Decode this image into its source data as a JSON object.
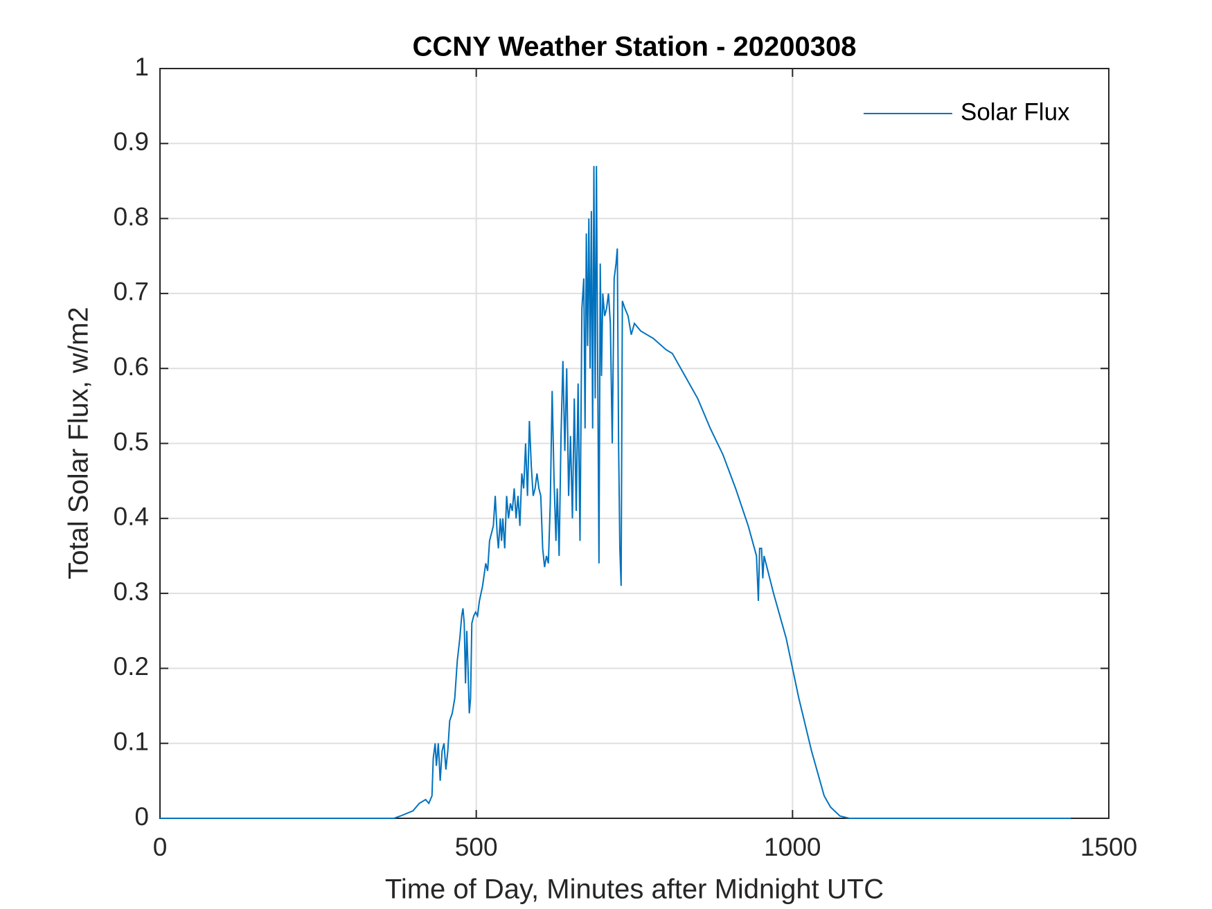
{
  "chart_data": {
    "type": "line",
    "title": "CCNY Weather Station - 20200308",
    "x_label": "Time of Day, Minutes after Midnight UTC",
    "y_label": "Total Solar Flux, w/m2",
    "x": [
      0,
      370,
      380,
      400,
      410,
      420,
      425,
      430,
      432,
      435,
      437,
      440,
      443,
      446,
      449,
      452,
      455,
      458,
      462,
      466,
      470,
      474,
      477,
      479,
      481,
      483,
      485,
      487,
      489,
      491,
      493,
      496,
      499,
      502,
      505,
      510,
      515,
      518,
      521,
      524,
      527,
      530,
      533,
      535,
      538,
      540,
      542,
      545,
      548,
      551,
      554,
      557,
      560,
      563,
      566,
      569,
      572,
      575,
      578,
      581,
      584,
      587,
      590,
      593,
      596,
      599,
      602,
      605,
      608,
      611,
      614,
      617,
      620,
      623,
      626,
      628,
      631,
      634,
      637,
      640,
      643,
      646,
      649,
      652,
      655,
      658,
      661,
      664,
      667,
      670,
      672,
      674,
      676,
      678,
      680,
      682,
      684,
      686,
      688,
      690,
      692,
      694,
      696,
      698,
      700,
      703,
      706,
      709,
      712,
      715,
      718,
      721,
      723,
      725,
      727,
      729,
      731,
      735,
      740,
      745,
      750,
      760,
      780,
      800,
      810,
      830,
      850,
      870,
      890,
      910,
      930,
      943,
      946,
      948,
      951,
      953,
      955,
      970,
      990,
      1010,
      1030,
      1050,
      1060,
      1075,
      1090,
      1440
    ],
    "series": [
      {
        "name": "Solar Flux",
        "color": "#0072bd",
        "values": [
          0,
          0,
          0.003,
          0.01,
          0.02,
          0.025,
          0.02,
          0.03,
          0.08,
          0.1,
          0.07,
          0.1,
          0.05,
          0.09,
          0.1,
          0.065,
          0.09,
          0.13,
          0.14,
          0.16,
          0.21,
          0.24,
          0.27,
          0.28,
          0.26,
          0.18,
          0.25,
          0.2,
          0.14,
          0.16,
          0.26,
          0.27,
          0.275,
          0.27,
          0.29,
          0.31,
          0.34,
          0.33,
          0.37,
          0.38,
          0.39,
          0.43,
          0.38,
          0.36,
          0.4,
          0.37,
          0.4,
          0.36,
          0.43,
          0.4,
          0.42,
          0.41,
          0.44,
          0.4,
          0.43,
          0.39,
          0.46,
          0.44,
          0.5,
          0.43,
          0.53,
          0.47,
          0.43,
          0.44,
          0.46,
          0.44,
          0.43,
          0.36,
          0.335,
          0.35,
          0.34,
          0.42,
          0.57,
          0.45,
          0.37,
          0.44,
          0.35,
          0.51,
          0.61,
          0.49,
          0.6,
          0.43,
          0.51,
          0.4,
          0.56,
          0.41,
          0.58,
          0.37,
          0.68,
          0.72,
          0.52,
          0.78,
          0.63,
          0.8,
          0.6,
          0.81,
          0.52,
          0.87,
          0.56,
          0.87,
          0.6,
          0.34,
          0.74,
          0.59,
          0.7,
          0.67,
          0.68,
          0.7,
          0.66,
          0.5,
          0.72,
          0.74,
          0.76,
          0.5,
          0.36,
          0.31,
          0.69,
          0.68,
          0.67,
          0.645,
          0.66,
          0.65,
          0.64,
          0.625,
          0.62,
          0.59,
          0.56,
          0.52,
          0.485,
          0.44,
          0.39,
          0.35,
          0.29,
          0.36,
          0.36,
          0.32,
          0.35,
          0.3,
          0.24,
          0.16,
          0.09,
          0.03,
          0.015,
          0.003,
          0,
          0
        ]
      }
    ],
    "xlim": [
      0,
      1500
    ],
    "xticks": [
      0,
      500,
      1000,
      1500
    ],
    "ylim": [
      0,
      1
    ],
    "yticks": [
      0,
      0.1,
      0.2,
      0.3,
      0.4,
      0.5,
      0.6,
      0.7,
      0.8,
      0.9,
      1
    ],
    "grid": true,
    "legend": "upper-right"
  }
}
